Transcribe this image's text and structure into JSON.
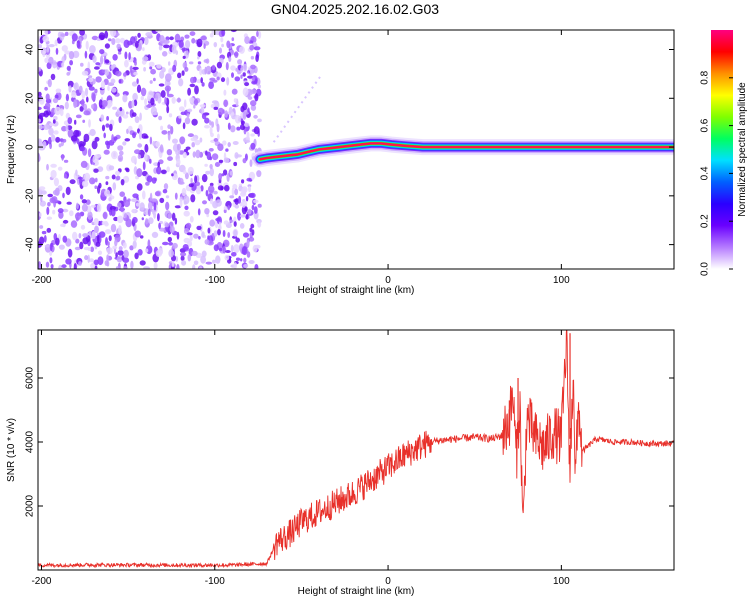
{
  "title": "GN04.2025.202.16.02.G03",
  "chart_data": [
    {
      "type": "heatmap",
      "name": "spectrogram",
      "xlabel": "Height of straight line (km)",
      "ylabel": "Frequency (Hz)",
      "xlim": [
        -202,
        165
      ],
      "ylim": [
        -50,
        48
      ],
      "xticks": [
        -200,
        -100,
        0,
        100
      ],
      "yticks": [
        -40,
        -20,
        0,
        20,
        40
      ],
      "grid": false,
      "noise_region_x": [
        -202,
        -74
      ],
      "signal_ridge": {
        "x": [
          -74,
          -70,
          -64,
          -58,
          -52,
          -46,
          -40,
          -34,
          -28,
          -22,
          -16,
          -10,
          -4,
          2,
          10,
          20,
          40,
          60,
          70,
          80,
          100,
          110,
          130,
          150,
          165
        ],
        "frequency": [
          -5,
          -4.5,
          -4,
          -3.5,
          -3,
          -2,
          -1,
          -0.5,
          0,
          0.5,
          1,
          1.5,
          1.5,
          1,
          0.5,
          0,
          0,
          0,
          0,
          0,
          0,
          0,
          0,
          0,
          0
        ]
      },
      "colorbar": {
        "label": "Normalized spectral amplitude",
        "range": [
          0,
          1
        ],
        "ticks": [
          "0.0",
          "0.2",
          "0.4",
          "0.6",
          "0.8"
        ],
        "colors": [
          "#ffffff",
          "#b57bff",
          "#6a00ff",
          "#2a00ff",
          "#0060ff",
          "#00e0ff",
          "#00ff60",
          "#80ff00",
          "#ffff00",
          "#ff9000",
          "#ff0000",
          "#ff0080"
        ]
      }
    },
    {
      "type": "line",
      "name": "snr",
      "xlabel": "Height of straight line (km)",
      "ylabel": "SNR (10 * v/v)",
      "xlim": [
        -202,
        165
      ],
      "ylim": [
        0,
        7500
      ],
      "xticks": [
        -200,
        -100,
        0,
        100
      ],
      "yticks": [
        2000,
        4000,
        6000
      ],
      "grid": false,
      "color": "#e8302a",
      "x": [
        -202,
        -170,
        -140,
        -110,
        -90,
        -70,
        -64,
        -60,
        -55,
        -50,
        -40,
        -30,
        -20,
        -10,
        0,
        10,
        20,
        25,
        30,
        40,
        50,
        60,
        66,
        70,
        72,
        74,
        76,
        78,
        80,
        85,
        90,
        95,
        100,
        103,
        105,
        107,
        108,
        110,
        112,
        120,
        130,
        140,
        150,
        165
      ],
      "y": [
        150,
        160,
        155,
        150,
        155,
        200,
        900,
        1000,
        1200,
        1500,
        1800,
        2100,
        2400,
        2800,
        3200,
        3600,
        3900,
        4000,
        4050,
        4100,
        4150,
        4100,
        4200,
        4700,
        5500,
        3500,
        5200,
        1200,
        4800,
        4100,
        3800,
        4300,
        4100,
        7200,
        3000,
        6500,
        2800,
        5100,
        3700,
        4100,
        4000,
        4000,
        3950,
        3950
      ],
      "markers": [
        {
          "x": 105,
          "y": 7400
        },
        {
          "x": 75,
          "y": 6000
        },
        {
          "x": 70,
          "y": 5300
        }
      ]
    }
  ]
}
